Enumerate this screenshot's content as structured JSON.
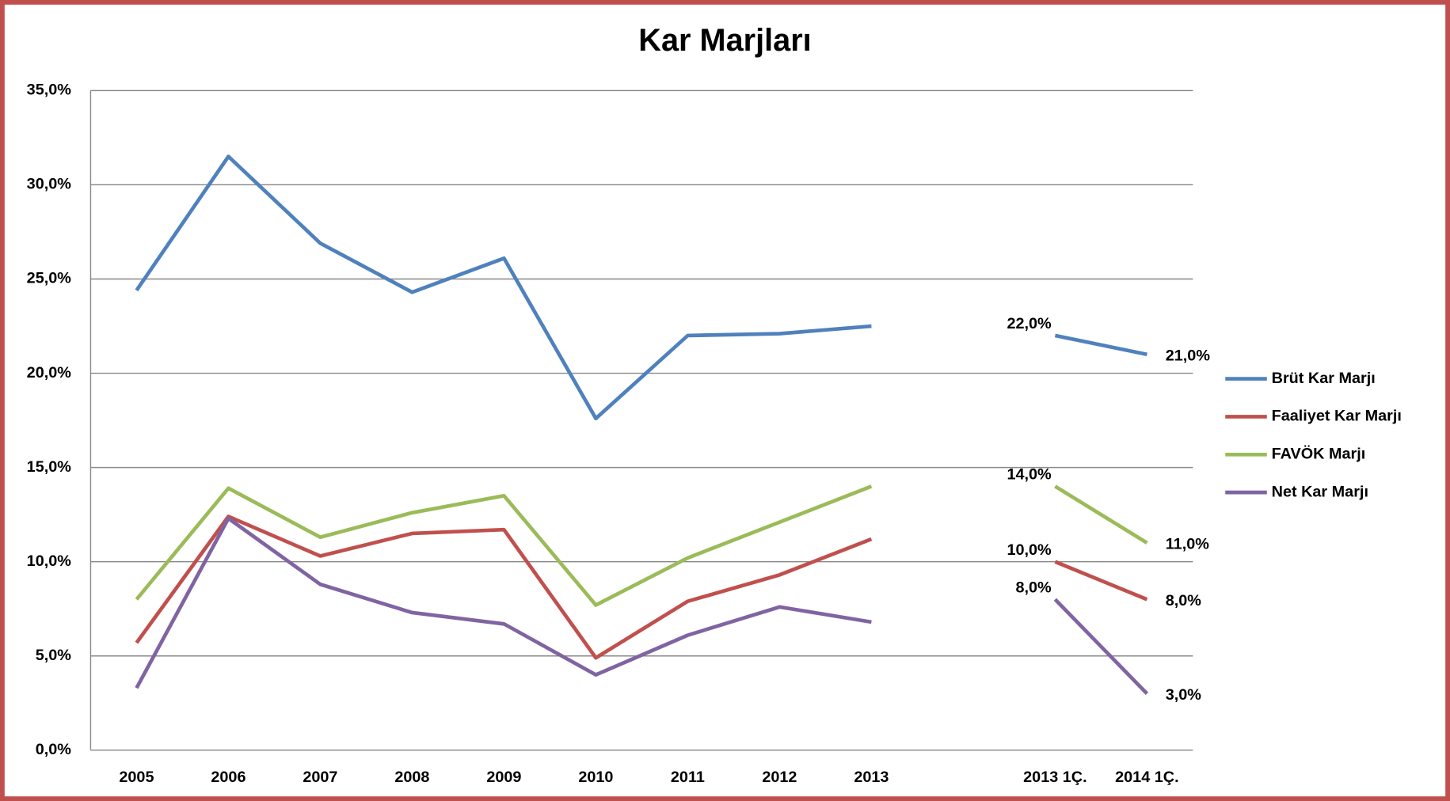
{
  "chart_data": {
    "type": "line",
    "title": "Kar Marjları",
    "categories": [
      "2005",
      "2006",
      "2007",
      "2008",
      "2009",
      "2010",
      "2011",
      "2012",
      "2013",
      null,
      "2013 1Ç.",
      "2014 1Ç."
    ],
    "series": [
      {
        "name": "Brüt Kar Marjı",
        "color": "#4f81bd",
        "values": [
          24.4,
          31.5,
          26.9,
          24.3,
          26.1,
          17.6,
          22.0,
          22.1,
          22.5,
          null,
          22,
          21
        ],
        "value_labels": [
          null,
          null,
          null,
          null,
          null,
          null,
          null,
          null,
          null,
          null,
          "22,0%",
          "21,0%"
        ]
      },
      {
        "name": "Faaliyet Kar Marjı",
        "color": "#c0504d",
        "values": [
          5.7,
          12.4,
          10.3,
          11.5,
          11.7,
          4.9,
          7.9,
          9.3,
          11.2,
          null,
          10,
          8
        ],
        "value_labels": [
          null,
          null,
          null,
          null,
          null,
          null,
          null,
          null,
          null,
          null,
          "10,0%",
          "8,0%"
        ]
      },
      {
        "name": "FAVÖK Marjı",
        "color": "#9bbb59",
        "values": [
          8.0,
          13.9,
          11.3,
          12.6,
          13.5,
          7.7,
          10.2,
          12.1,
          14.0,
          null,
          14,
          11
        ],
        "value_labels": [
          null,
          null,
          null,
          null,
          null,
          null,
          null,
          null,
          null,
          null,
          "14,0%",
          "11,0%"
        ]
      },
      {
        "name": "Net Kar Marjı",
        "color": "#8064a2",
        "values": [
          3.3,
          12.3,
          8.8,
          7.3,
          6.7,
          4.0,
          6.1,
          7.6,
          6.8,
          null,
          8,
          3
        ],
        "value_labels": [
          null,
          null,
          null,
          null,
          null,
          null,
          null,
          null,
          null,
          null,
          "8,0%",
          "3,0%"
        ]
      }
    ],
    "ylim": [
      0,
      35
    ],
    "yticks": [
      {
        "value": 0,
        "label": "0,0%"
      },
      {
        "value": 5,
        "label": "5,0%"
      },
      {
        "value": 10,
        "label": "10,0%"
      },
      {
        "value": 15,
        "label": "15,0%"
      },
      {
        "value": 20,
        "label": "20,0%"
      },
      {
        "value": 25,
        "label": "25,0%"
      },
      {
        "value": 30,
        "label": "30,0%"
      },
      {
        "value": 35,
        "label": "35,0%"
      }
    ],
    "grid": true,
    "legend": "right"
  }
}
